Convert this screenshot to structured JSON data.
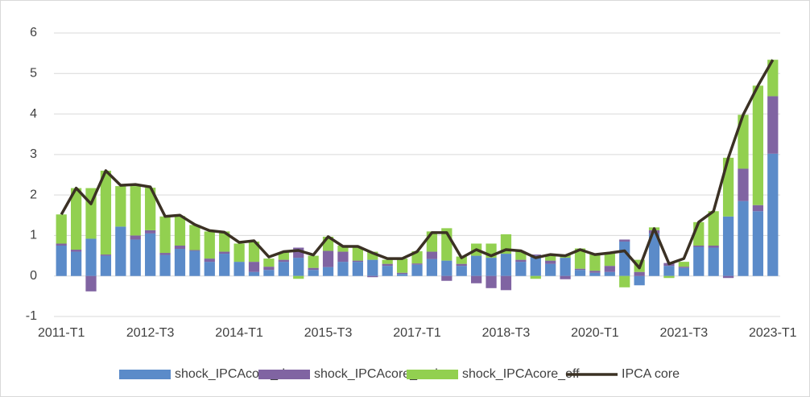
{
  "chart_data": {
    "type": "bar",
    "stacked": true,
    "categories": [
      "2011-T1",
      null,
      null,
      null,
      null,
      null,
      "2012-T3",
      null,
      null,
      null,
      null,
      null,
      "2014-T1",
      null,
      null,
      null,
      null,
      null,
      "2015-T3",
      null,
      null,
      null,
      null,
      null,
      "2017-T1",
      null,
      null,
      null,
      null,
      null,
      "2018-T3",
      null,
      null,
      null,
      null,
      null,
      "2020-T1",
      null,
      null,
      null,
      null,
      null,
      "2021-T3",
      null,
      null,
      null,
      null,
      null,
      "2023-T1"
    ],
    "ylim": [
      -1,
      6
    ],
    "yticks": [
      -1,
      0,
      1,
      2,
      3,
      4,
      5,
      6
    ],
    "grid": true,
    "legend": "bottom",
    "series": [
      {
        "name": "shock_IPCAcore_dom",
        "color": "#5b8bc9",
        "values": [
          0.75,
          0.6,
          0.92,
          0.5,
          1.22,
          0.9,
          1.05,
          0.52,
          0.67,
          0.62,
          0.35,
          0.55,
          0.35,
          0.1,
          0.15,
          0.35,
          0.45,
          0.15,
          0.22,
          0.35,
          0.35,
          0.4,
          0.25,
          0.05,
          0.28,
          0.42,
          0.38,
          0.25,
          0.5,
          0.45,
          0.55,
          0.35,
          0.5,
          0.3,
          0.45,
          0.15,
          0.08,
          0.1,
          0.85,
          -0.23,
          1.05,
          0.25,
          0.2,
          0.72,
          0.7,
          1.47,
          1.85,
          1.6,
          3.02
        ]
      },
      {
        "name": "shock_IPCAcore_amb",
        "color": "#8064a2",
        "values": [
          0.05,
          0.05,
          -0.38,
          0.03,
          0,
          0.1,
          0.08,
          0.05,
          0.08,
          0.02,
          0.08,
          0.05,
          0,
          0.25,
          0.08,
          0.05,
          0.25,
          0.05,
          0.4,
          0.25,
          0.03,
          -0.03,
          0.05,
          0.03,
          0.03,
          0.18,
          -0.12,
          0.05,
          -0.18,
          -0.3,
          -0.35,
          0.05,
          0.03,
          0.08,
          -0.08,
          0.03,
          0.05,
          0.15,
          0.05,
          0.1,
          0.08,
          0.07,
          0.03,
          0.03,
          0.05,
          -0.05,
          0.8,
          0.15,
          1.42
        ]
      },
      {
        "name": "shock_IPCAcore_off",
        "color": "#92d050",
        "values": [
          0.72,
          1.52,
          1.25,
          2.07,
          1.0,
          1.22,
          1.05,
          0.9,
          0.73,
          0.62,
          0.67,
          0.5,
          0.45,
          0.5,
          0.2,
          0.18,
          -0.07,
          0.3,
          0.35,
          0.15,
          0.33,
          0.2,
          0.1,
          0.35,
          0.3,
          0.5,
          0.8,
          0.18,
          0.3,
          0.35,
          0.48,
          0.2,
          -0.07,
          0.15,
          0.07,
          0.5,
          0.4,
          0.33,
          -0.28,
          0.3,
          0.07,
          -0.05,
          0.12,
          0.58,
          0.85,
          1.45,
          1.33,
          2.95,
          0.9
        ]
      },
      {
        "name": "IPCA core",
        "type": "line",
        "color": "#3b3124",
        "values": [
          1.52,
          2.17,
          1.78,
          2.6,
          2.24,
          2.26,
          2.2,
          1.47,
          1.5,
          1.27,
          1.12,
          1.08,
          0.83,
          0.87,
          0.47,
          0.6,
          0.63,
          0.52,
          0.97,
          0.73,
          0.73,
          0.57,
          0.43,
          0.43,
          0.6,
          1.07,
          1.07,
          0.45,
          0.65,
          0.5,
          0.65,
          0.62,
          0.45,
          0.53,
          0.5,
          0.65,
          0.53,
          0.57,
          0.62,
          0.2,
          1.17,
          0.3,
          0.43,
          1.33,
          1.6,
          2.92,
          3.98,
          4.7,
          5.34
        ]
      }
    ]
  }
}
